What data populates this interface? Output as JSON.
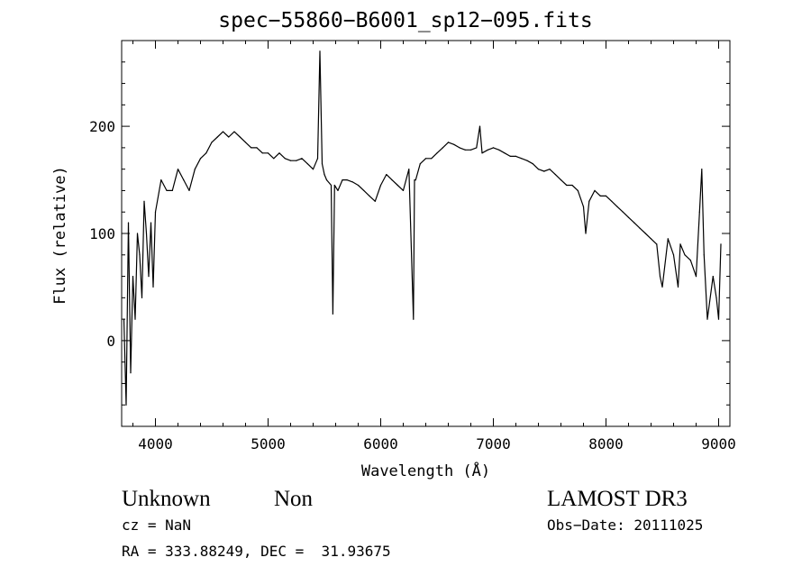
{
  "header": {
    "title": "spec−55860−B6001_sp12−095.fits"
  },
  "info": {
    "obj_class": "Unknown",
    "obj_subclass": "Non",
    "survey": "LAMOST DR3",
    "cz": "cz = NaN",
    "obs_date": "Obs−Date: 20111025",
    "radec": "RA = 333.88249, DEC =  31.93675"
  },
  "chart_data": {
    "type": "line",
    "title": "spec−55860−B6001_sp12−095.fits",
    "xlabel": "Wavelength (Å)",
    "ylabel": "Flux (relative)",
    "xlim": [
      3700,
      9100
    ],
    "ylim": [
      -80,
      280
    ],
    "xticks": [
      4000,
      5000,
      6000,
      7000,
      8000,
      9000
    ],
    "yticks": [
      0,
      100,
      200
    ],
    "grid": false,
    "line_color": "#000000",
    "series": [
      {
        "x": [
          3720,
          3740,
          3760,
          3780,
          3800,
          3820,
          3840,
          3860,
          3880,
          3900,
          3920,
          3940,
          3960,
          3980,
          4000,
          4050,
          4100,
          4150,
          4200,
          4250,
          4300,
          4350,
          4400,
          4450,
          4500,
          4550,
          4600,
          4650,
          4700,
          4750,
          4800,
          4850,
          4900,
          4950,
          5000,
          5050,
          5100,
          5150,
          5200,
          5250,
          5300,
          5350,
          5400,
          5440,
          5460,
          5480,
          5500,
          5520,
          5560,
          5575,
          5590,
          5620,
          5660,
          5700,
          5750,
          5800,
          5850,
          5900,
          5950,
          6000,
          6050,
          6100,
          6150,
          6200,
          6250,
          6290,
          6300,
          6310,
          6350,
          6400,
          6450,
          6500,
          6550,
          6600,
          6650,
          6700,
          6750,
          6800,
          6850,
          6880,
          6900,
          6950,
          7000,
          7050,
          7100,
          7150,
          7200,
          7250,
          7300,
          7350,
          7400,
          7450,
          7500,
          7550,
          7600,
          7650,
          7700,
          7750,
          7800,
          7820,
          7850,
          7900,
          7950,
          8000,
          8050,
          8100,
          8150,
          8200,
          8250,
          8300,
          8350,
          8400,
          8450,
          8480,
          8500,
          8550,
          8600,
          8640,
          8660,
          8700,
          8750,
          8800,
          8830,
          8850,
          8870,
          8900,
          8950,
          8980,
          9000,
          9020
        ],
        "y": [
          20,
          -60,
          110,
          -30,
          60,
          20,
          100,
          80,
          40,
          130,
          100,
          60,
          110,
          50,
          120,
          150,
          140,
          140,
          160,
          150,
          140,
          160,
          170,
          175,
          185,
          190,
          195,
          190,
          195,
          190,
          185,
          180,
          180,
          175,
          175,
          170,
          175,
          170,
          168,
          168,
          170,
          165,
          160,
          170,
          270,
          165,
          155,
          150,
          145,
          25,
          145,
          140,
          150,
          150,
          148,
          145,
          140,
          135,
          130,
          145,
          155,
          150,
          145,
          140,
          160,
          20,
          150,
          150,
          165,
          170,
          170,
          175,
          180,
          185,
          183,
          180,
          178,
          178,
          180,
          200,
          175,
          178,
          180,
          178,
          175,
          172,
          172,
          170,
          168,
          165,
          160,
          158,
          160,
          155,
          150,
          145,
          145,
          140,
          125,
          100,
          130,
          140,
          135,
          135,
          130,
          125,
          120,
          115,
          110,
          105,
          100,
          95,
          90,
          60,
          50,
          95,
          80,
          50,
          90,
          80,
          75,
          60,
          120,
          160,
          80,
          20,
          60,
          40,
          20,
          90
        ]
      }
    ]
  }
}
